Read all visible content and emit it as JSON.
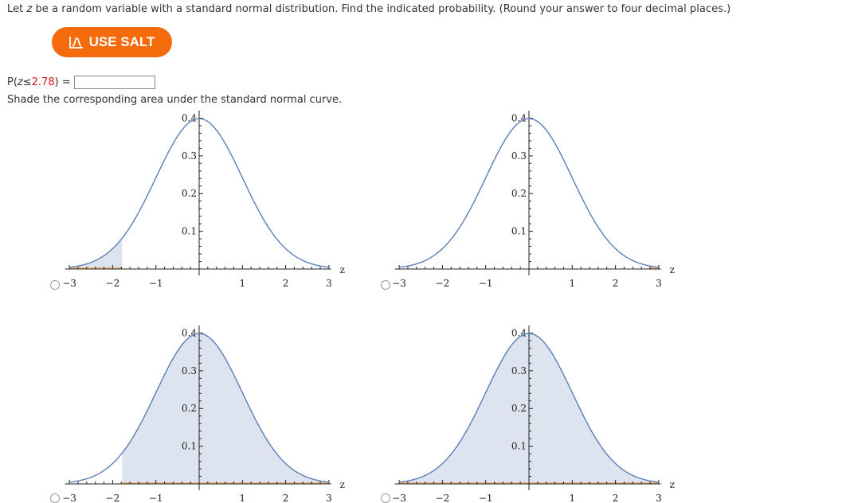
{
  "question": {
    "prefix": "Let ",
    "var": "z",
    "suffix": " be a random variable with a standard normal distribution. Find the indicated probability. (Round your answer to four decimal places.)"
  },
  "salt_button": {
    "label": "USE SALT",
    "icon": "salt-bell-curve-icon",
    "color": "#f56a0a"
  },
  "probability": {
    "prefix": "P(",
    "var": "z",
    "op": " ≤ ",
    "value": "2.78",
    "suffix": ") =",
    "answer_value": "",
    "value_color": "#e0141e"
  },
  "instruction": "Shade the corresponding area under the standard normal curve.",
  "chart_data": [
    {
      "type": "area",
      "title": "Option A",
      "xlabel": "z",
      "ylabel": "",
      "x_ticks": [
        -3,
        -2,
        -1,
        1,
        2,
        3
      ],
      "y_ticks": [
        0.1,
        0.2,
        0.3,
        0.4
      ],
      "xlim": [
        -3,
        3
      ],
      "ylim": [
        0,
        0.4
      ],
      "curve": "standard normal pdf",
      "shaded_from": -3,
      "shaded_to": -1.78,
      "selected": false
    },
    {
      "type": "area",
      "title": "Option B",
      "xlabel": "z",
      "ylabel": "",
      "x_ticks": [
        -3,
        -2,
        -1,
        1,
        2,
        3
      ],
      "y_ticks": [
        0.1,
        0.2,
        0.3,
        0.4
      ],
      "xlim": [
        -3,
        3
      ],
      "ylim": [
        0,
        0.4
      ],
      "curve": "standard normal pdf",
      "shaded_from": 2.78,
      "shaded_to": 3,
      "selected": false
    },
    {
      "type": "area",
      "title": "Option C",
      "xlabel": "z",
      "ylabel": "",
      "x_ticks": [
        -3,
        -2,
        -1,
        1,
        2,
        3
      ],
      "y_ticks": [
        0.1,
        0.2,
        0.3,
        0.4
      ],
      "xlim": [
        -3,
        3
      ],
      "ylim": [
        0,
        0.4
      ],
      "curve": "standard normal pdf",
      "shaded_from": -1.78,
      "shaded_to": 3,
      "selected": false
    },
    {
      "type": "area",
      "title": "Option D",
      "xlabel": "z",
      "ylabel": "",
      "x_ticks": [
        -3,
        -2,
        -1,
        1,
        2,
        3
      ],
      "y_ticks": [
        0.1,
        0.2,
        0.3,
        0.4
      ],
      "xlim": [
        -3,
        3
      ],
      "ylim": [
        0,
        0.4
      ],
      "curve": "standard normal pdf",
      "shaded_from": -3,
      "shaded_to": 3,
      "selected": false
    }
  ],
  "colors": {
    "curve": "#5b7fb8",
    "shade": "#dde4ef",
    "baseline": "#e8b878",
    "axis": "#222222"
  }
}
